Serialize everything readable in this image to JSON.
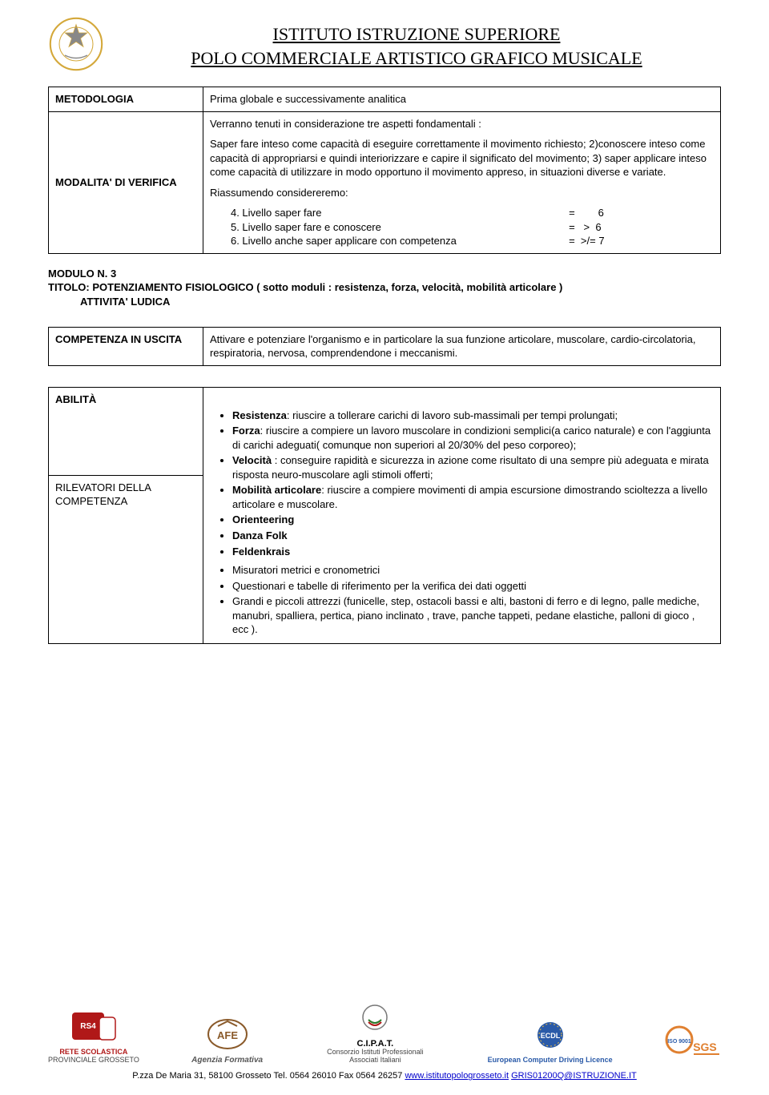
{
  "header": {
    "title1": "ISTITUTO ISTRUZIONE SUPERIORE",
    "title2": "POLO COMMERCIALE ARTISTICO GRAFICO MUSICALE"
  },
  "table1": {
    "row1": {
      "label": "METODOLOGIA",
      "text": "Prima globale e successivamente analitica"
    },
    "row2": {
      "label": "MODALITA' DI VERIFICA",
      "para1": "Verranno tenuti in considerazione tre aspetti fondamentali :",
      "para2": "Saper fare inteso come capacità di eseguire correttamente il movimento richiesto; 2)conoscere inteso come capacità di appropriarsi e quindi interiorizzare e capire il significato del movimento; 3) saper applicare inteso come capacità di utilizzare in modo opportuno il movimento appreso, in situazioni diverse  e variate.",
      "riass_title": "Riassumendo considereremo:",
      "riass": [
        {
          "n": "4.",
          "left": "Livello saper fare",
          "right": "=        6"
        },
        {
          "n": "5.",
          "left": "Livello saper fare e conoscere",
          "right": "=   >  6"
        },
        {
          "n": "6.",
          "left": "Livello anche saper applicare con competenza",
          "right": "=  >/= 7"
        }
      ]
    }
  },
  "modulo": {
    "line1": "MODULO N. 3",
    "line2": "TITOLO:  POTENZIAMENTO FISIOLOGICO ( sotto moduli : resistenza, forza, velocità, mobilità articolare )",
    "line3": "ATTIVITA' LUDICA"
  },
  "table2": {
    "label": "COMPETENZA IN USCITA",
    "text": "Attivare e potenziare l'organismo e in particolare la sua funzione articolare, muscolare, cardio-circolatoria, respiratoria, nervosa, comprendendone i meccanismi."
  },
  "table3": {
    "row1": {
      "label": "ABILITÀ",
      "bullets": [
        {
          "lead": "Resistenza",
          "text": ": riuscire a tollerare carichi di lavoro sub-massimali per tempi prolungati;"
        },
        {
          "lead": "Forza",
          "text": ": riuscire a compiere un lavoro muscolare in condizioni semplici(a carico naturale) e con l'aggiunta di carichi adeguati( comunque non superiori al 20/30% del peso corporeo);"
        },
        {
          "lead": "Velocità ",
          "text": ": conseguire rapidità e sicurezza in azione come risultato di una sempre più adeguata e mirata risposta neuro-muscolare agli stimoli offerti;"
        },
        {
          "lead": "Mobilità articolare",
          "text": ": riuscire a compiere movimenti di ampia escursione dimostrando scioltezza a livello articolare e muscolare."
        },
        {
          "lead": "Orienteering",
          "text": ""
        },
        {
          "lead": "Danza Folk",
          "text": ""
        },
        {
          "lead": "Feldenkrais",
          "text": ""
        }
      ]
    },
    "row2": {
      "label": "RILEVATORI DELLA COMPETENZA",
      "bullets": [
        {
          "text": "Misuratori metrici e cronometrici"
        },
        {
          "text": "Questionari e tabelle di riferimento per la verifica dei dati oggetti"
        },
        {
          "text": "Grandi e piccoli attrezzi (funicelle, step, ostacoli bassi e alti, bastoni di ferro e di legno, palle mediche, manubri, spalliera, pertica, piano inclinato , trave, panche tappeti, pedane elastiche, palloni di gioco , ecc )."
        }
      ]
    }
  },
  "footer_logos": {
    "l1": {
      "caption": "RETE SCOLASTICA",
      "sub": "PROVINCIALE GROSSETO"
    },
    "l2": {
      "caption": "Agenzia Formativa"
    },
    "l3": {
      "caption": "C.I.P.A.T.",
      "sub": "Consorzio Istituti Professionali Associati Italiani"
    },
    "l4": {
      "caption": "European Computer Driving Licence"
    },
    "l5": {
      "caption": ""
    }
  },
  "footer": {
    "addr": "P.zza De Maria 31, 58100 Grosseto      Tel. 0564 26010  Fax  0564 26257 ",
    "url": "www.istitutopologrosseto.it",
    "sep": " ",
    "email": "GRIS01200Q@ISTRUZIONE.IT"
  },
  "colors": {
    "text": "#000000",
    "link": "#0000cc",
    "emblem_gold": "#d4a83a",
    "emblem_gray": "#888888",
    "rs4_red": "#b01818",
    "afe_brown": "#8a5a2a",
    "ecdl_blue": "#2a5aa8",
    "sgs_orange": "#e08030",
    "cipat_gray": "#777777"
  }
}
